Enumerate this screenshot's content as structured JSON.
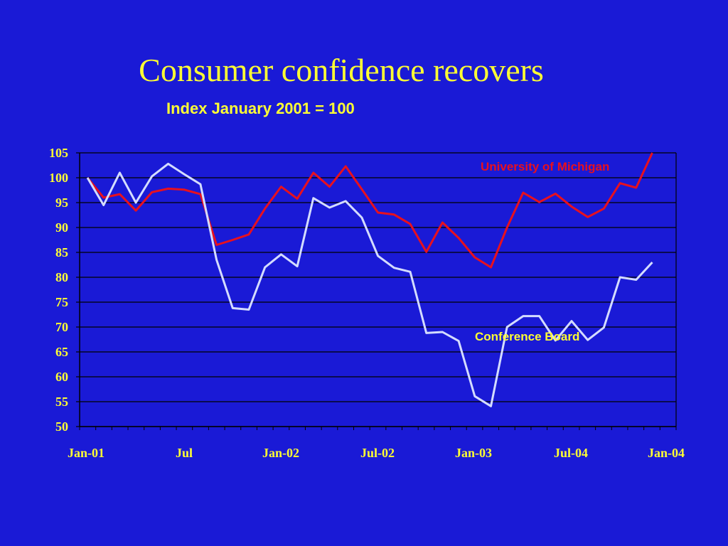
{
  "title": "Consumer confidence recovers",
  "subtitle": "Index January 2001 = 100",
  "colors": {
    "background": "#1a1ad6",
    "text": "#ffff33",
    "michigan": "#e8101e",
    "conference": "#d4dcff",
    "grid": "#000000"
  },
  "chart_data": {
    "type": "line",
    "ylim": [
      50,
      105
    ],
    "yticks": [
      "105",
      "100",
      "95",
      "90",
      "85",
      "80",
      "75",
      "70",
      "65",
      "60",
      "55",
      "50"
    ],
    "xtick_labels": [
      "Jan-01",
      "Jul",
      "Jan-02",
      "Jul-02",
      "Jan-03",
      "Jul-04",
      "Jan-04"
    ],
    "grid": true,
    "series": [
      {
        "name": "University of Michigan",
        "label_color": "#e8101e",
        "values": [
          100,
          96,
          96.7,
          93.4,
          97.1,
          97.8,
          97.6,
          96.7,
          86.5,
          87.5,
          88.6,
          93.8,
          98.2,
          95.8,
          101.0,
          98.2,
          102.3,
          97.7,
          93.0,
          92.6,
          90.7,
          85.1,
          91.0,
          87.9,
          84.0,
          82.0,
          90.0,
          97.0,
          95.1,
          96.8,
          94.2,
          92.1,
          93.8,
          98.9,
          98.0,
          106.0
        ]
      },
      {
        "name": "Conference Board",
        "label_color": "#ffff33",
        "values": [
          100,
          94.5,
          101.0,
          95.0,
          100.3,
          102.8,
          100.7,
          98.7,
          83.5,
          73.8,
          73.5,
          82.0,
          84.6,
          82.2,
          95.9,
          94.0,
          95.3,
          92.0,
          84.3,
          81.9,
          81.1,
          68.8,
          69.0,
          67.2,
          56.1,
          54.1,
          70.0,
          72.2,
          72.2,
          67.3,
          71.2,
          67.4,
          69.9,
          80.0,
          79.5,
          83.0
        ]
      }
    ]
  }
}
